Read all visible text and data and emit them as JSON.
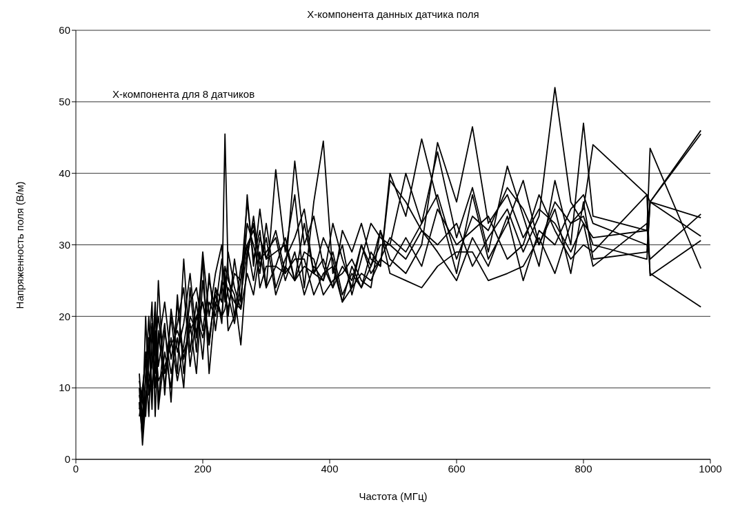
{
  "chart_data": {
    "type": "line",
    "title": "X-компонента данных датчика поля",
    "xlabel": "Частота (МГц)",
    "ylabel": "Напряженность поля (В/м)",
    "annotations": [
      "X-компонента для 8 датчиков"
    ],
    "x": [
      100,
      105,
      110,
      115,
      120,
      125,
      130,
      140,
      150,
      160,
      170,
      180,
      190,
      200,
      210,
      220,
      230,
      235,
      240,
      250,
      260,
      270,
      280,
      290,
      300,
      315,
      330,
      345,
      360,
      375,
      390,
      405,
      420,
      435,
      450,
      465,
      480,
      495,
      520,
      545,
      570,
      600,
      625,
      650,
      680,
      705,
      730,
      755,
      780,
      800,
      815,
      900,
      905,
      985
    ],
    "series": [
      {
        "color": "#000000",
        "values": [
          8,
          3,
          12,
          20,
          9,
          18,
          7,
          15,
          10,
          22,
          14,
          19,
          12,
          25,
          16,
          24,
          22,
          45.5,
          26,
          20,
          27,
          30,
          25,
          31,
          28,
          29,
          30,
          25,
          27,
          26,
          28,
          24,
          27,
          25,
          30,
          26,
          28,
          31,
          29,
          33,
          37,
          28,
          34,
          32,
          38,
          35,
          30,
          36,
          33,
          35,
          44,
          37,
          36,
          31.2
        ]
      },
      {
        "color": "#000000",
        "values": [
          10,
          2,
          8,
          15,
          22,
          6,
          18,
          10,
          20,
          12,
          28,
          15,
          22,
          14,
          26,
          18,
          25,
          24,
          20,
          28,
          22,
          33,
          30,
          26,
          33,
          24,
          28,
          31,
          35,
          26,
          31,
          28,
          22,
          27,
          24,
          29,
          27,
          39,
          36,
          32,
          30,
          33,
          27,
          31,
          35,
          29,
          34,
          52,
          36,
          33,
          31,
          32,
          43.5,
          26.7
        ]
      },
      {
        "color": "#000000",
        "values": [
          12,
          5,
          20,
          9,
          14,
          22,
          8,
          18,
          12,
          17,
          10,
          24,
          15,
          28,
          12,
          22,
          20,
          26,
          23,
          19,
          25,
          36,
          28,
          32,
          24,
          40.5,
          29,
          37,
          24,
          36,
          44.5,
          26,
          30,
          23,
          28,
          33,
          31,
          30,
          40,
          33,
          43,
          31,
          38,
          29,
          41,
          34,
          27,
          39,
          30,
          47,
          34,
          32,
          36,
          45.5
        ]
      },
      {
        "color": "#000000",
        "values": [
          7,
          10,
          14,
          6,
          18,
          12,
          25,
          9,
          21,
          15,
          19,
          26,
          17,
          29,
          20,
          26,
          30,
          22,
          29,
          24,
          21,
          37,
          27,
          35,
          28,
          32,
          26,
          41.7,
          30,
          34,
          27,
          24,
          32,
          29,
          33,
          28,
          27,
          40,
          34,
          44.8,
          36,
          26,
          37,
          28,
          33,
          39,
          30,
          35,
          26,
          36,
          28,
          29,
          36,
          46
        ]
      },
      {
        "color": "#000000",
        "values": [
          9,
          6,
          11,
          17,
          7,
          21,
          13,
          19,
          8,
          23,
          12,
          20,
          18,
          22,
          16,
          24,
          19,
          27,
          25,
          23,
          16,
          28,
          34,
          27,
          31,
          23,
          27,
          25,
          33,
          26,
          25,
          33,
          28,
          24,
          30,
          27,
          32,
          28,
          26,
          30,
          44.3,
          36,
          46.5,
          33,
          37,
          31,
          35,
          33,
          29,
          33,
          27,
          33,
          26,
          21.3
        ]
      },
      {
        "color": "#000000",
        "values": [
          11,
          8,
          6,
          14,
          19,
          10,
          16,
          22,
          14,
          19,
          24,
          13,
          20,
          17,
          22,
          20,
          24,
          23,
          21,
          26,
          25,
          30,
          32,
          28,
          29,
          31,
          25,
          29,
          23,
          27,
          25,
          29,
          23,
          26,
          24,
          27,
          30,
          30,
          28,
          32,
          29,
          25,
          31,
          27,
          34,
          25,
          32,
          30,
          35,
          37,
          33,
          30,
          28,
          34.3
        ]
      },
      {
        "color": "#000000",
        "values": [
          6,
          9,
          15,
          12,
          9,
          16,
          20,
          12,
          17,
          11,
          16,
          22,
          24,
          18,
          25,
          21,
          28,
          25,
          18,
          20,
          23,
          29,
          33,
          24,
          27,
          27,
          31,
          25,
          29,
          28,
          23,
          25,
          26,
          28,
          25,
          24,
          32,
          26,
          25,
          24,
          27,
          29,
          29,
          25,
          26,
          27,
          31,
          26,
          33,
          34,
          30,
          28,
          36,
          33.8
        ]
      },
      {
        "color": "#000000",
        "values": [
          8,
          4,
          9,
          11,
          13,
          17,
          11,
          13,
          16,
          18,
          15,
          18,
          20,
          22,
          17,
          23,
          20,
          21,
          24,
          22,
          21,
          26,
          23,
          29,
          24,
          27,
          26,
          28,
          28,
          23,
          26,
          27,
          22,
          24,
          26,
          25,
          28,
          27,
          31,
          27,
          35,
          30,
          32,
          34,
          28,
          30,
          37,
          32,
          28,
          30,
          29,
          37,
          25.7,
          30.6
        ]
      }
    ],
    "xlim": [
      0,
      1000
    ],
    "xticks": [
      0,
      200,
      400,
      600,
      800,
      1000
    ],
    "ylim": [
      0,
      60
    ],
    "yticks": [
      0,
      10,
      20,
      30,
      40,
      50,
      60
    ],
    "grid": "y",
    "legend": false,
    "marker": "none",
    "line_style": "solid"
  }
}
